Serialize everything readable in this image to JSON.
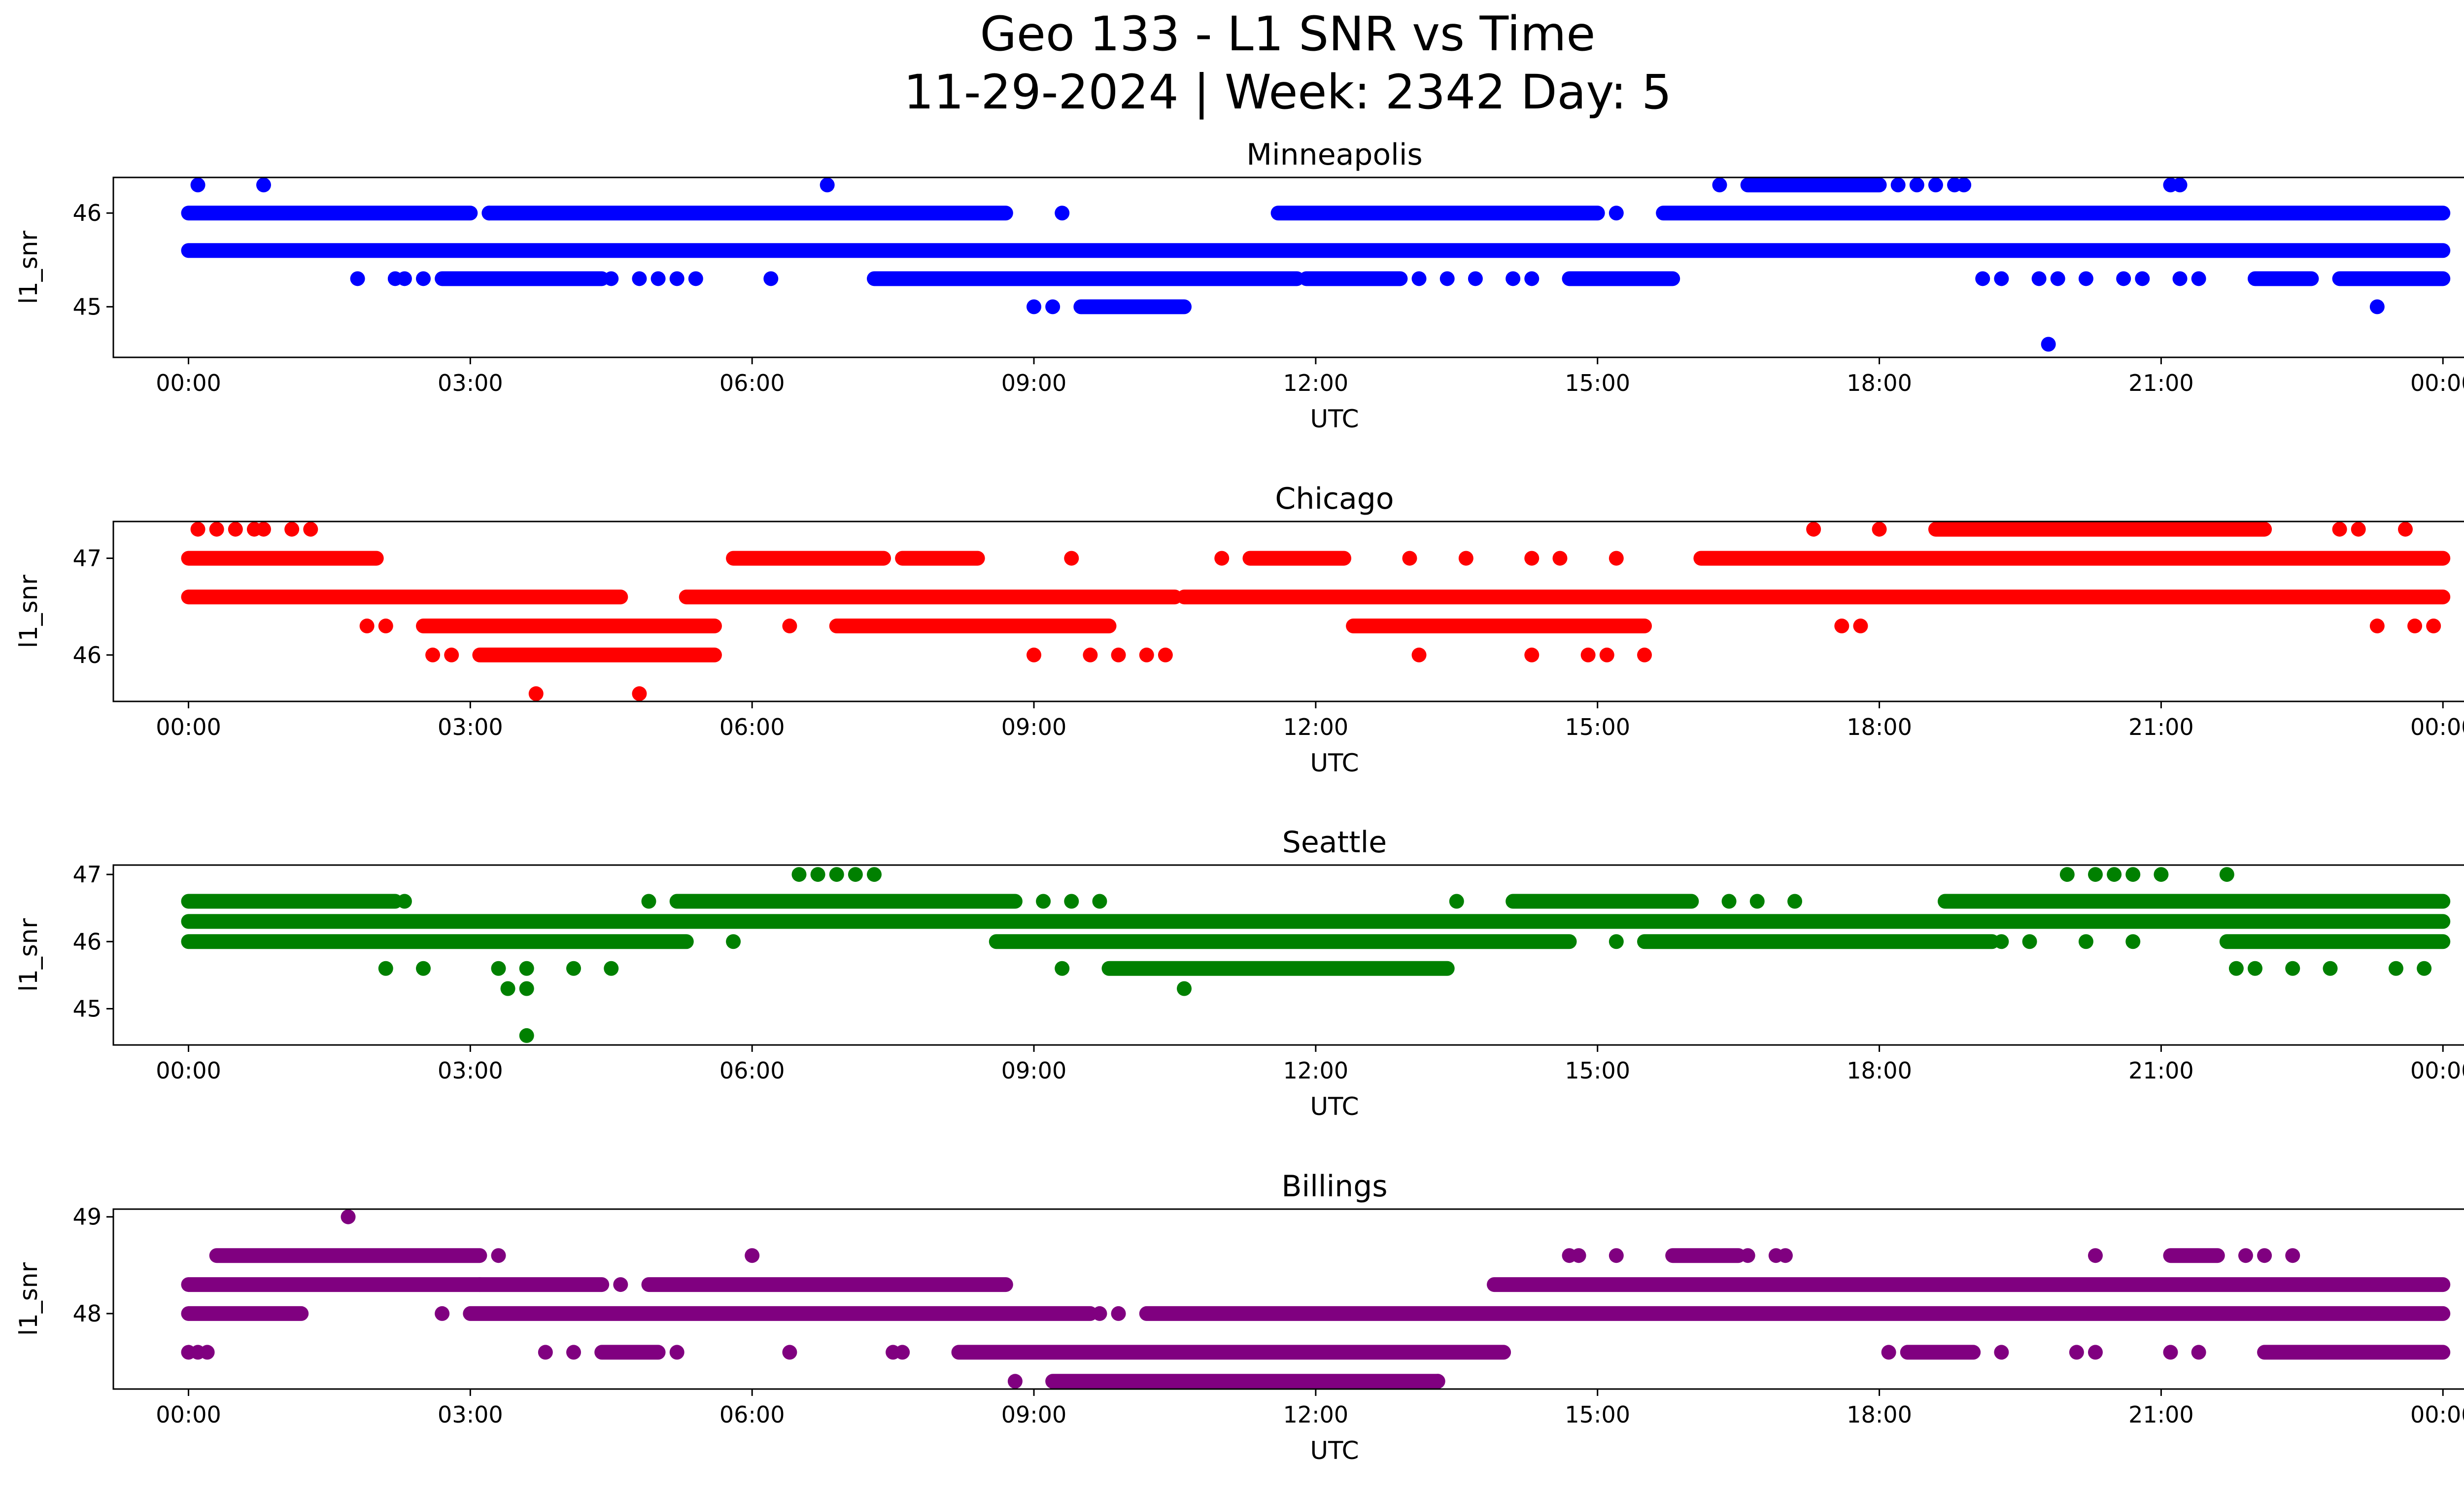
{
  "figure": {
    "title_line1": "Geo 133 - L1 SNR vs Time",
    "title_line2": "11-29-2024 | Week: 2342 Day: 5"
  },
  "chart_data": [
    {
      "type": "scatter",
      "title": "Minneapolis",
      "xlabel": "UTC",
      "ylabel": "l1_snr",
      "color": "#0000ff",
      "xlim": [
        -0.8,
        25.2
      ],
      "ylim": [
        44.46,
        46.38
      ],
      "xticks": [
        0,
        3,
        6,
        9,
        12,
        15,
        18,
        21,
        24
      ],
      "xtick_labels": [
        "00:00",
        "03:00",
        "06:00",
        "09:00",
        "12:00",
        "15:00",
        "18:00",
        "21:00",
        "00:00"
      ],
      "yticks": [
        45,
        46
      ],
      "ytick_labels": [
        "45",
        "46"
      ],
      "levels": [
        {
          "y": 45.6,
          "ranges": [
            [
              0,
              24
            ]
          ]
        },
        {
          "y": 46.0,
          "ranges": [
            [
              0,
              3.0
            ],
            [
              3.2,
              8.7
            ],
            [
              11.6,
              15.0
            ],
            [
              15.7,
              24
            ]
          ]
        },
        {
          "y": 45.3,
          "ranges": [
            [
              2.7,
              4.4
            ],
            [
              7.3,
              11.8
            ],
            [
              11.9,
              12.9
            ],
            [
              14.7,
              15.8
            ],
            [
              22.0,
              22.6
            ],
            [
              22.9,
              24
            ]
          ]
        },
        {
          "y": 45.0,
          "ranges": [
            [
              9.5,
              10.6
            ]
          ]
        },
        {
          "y": 46.3,
          "ranges": [
            [
              16.6,
              18.0
            ]
          ]
        }
      ],
      "points": [
        [
          0.1,
          46.3
        ],
        [
          0.8,
          46.3
        ],
        [
          6.8,
          46.3
        ],
        [
          16.3,
          46.3
        ],
        [
          18.2,
          46.3
        ],
        [
          18.4,
          46.3
        ],
        [
          18.6,
          46.3
        ],
        [
          18.8,
          46.3
        ],
        [
          18.9,
          46.3
        ],
        [
          21.1,
          46.3
        ],
        [
          21.2,
          46.3
        ],
        [
          3.2,
          46.0
        ],
        [
          9.3,
          46.0
        ],
        [
          15.2,
          46.0
        ],
        [
          9.0,
          45.0
        ],
        [
          9.2,
          45.0
        ],
        [
          23.3,
          45.0
        ],
        [
          19.8,
          44.6
        ],
        [
          1.8,
          45.3
        ],
        [
          2.2,
          45.3
        ],
        [
          2.3,
          45.3
        ],
        [
          2.5,
          45.3
        ],
        [
          4.5,
          45.3
        ],
        [
          4.8,
          45.3
        ],
        [
          5.0,
          45.3
        ],
        [
          5.2,
          45.3
        ],
        [
          5.4,
          45.3
        ],
        [
          6.2,
          45.3
        ],
        [
          13.1,
          45.3
        ],
        [
          13.4,
          45.3
        ],
        [
          13.7,
          45.3
        ],
        [
          14.1,
          45.3
        ],
        [
          14.3,
          45.3
        ],
        [
          19.1,
          45.3
        ],
        [
          19.3,
          45.3
        ],
        [
          19.7,
          45.3
        ],
        [
          19.9,
          45.3
        ],
        [
          20.2,
          45.3
        ],
        [
          20.6,
          45.3
        ],
        [
          20.8,
          45.3
        ],
        [
          21.2,
          45.3
        ],
        [
          21.4,
          45.3
        ]
      ]
    },
    {
      "type": "scatter",
      "title": "Chicago",
      "xlabel": "UTC",
      "ylabel": "l1_snr",
      "color": "#ff0000",
      "xlim": [
        -0.8,
        25.2
      ],
      "ylim": [
        45.52,
        47.38
      ],
      "xticks": [
        0,
        3,
        6,
        9,
        12,
        15,
        18,
        21,
        24
      ],
      "xtick_labels": [
        "00:00",
        "03:00",
        "06:00",
        "09:00",
        "12:00",
        "15:00",
        "18:00",
        "21:00",
        "00:00"
      ],
      "yticks": [
        46,
        47
      ],
      "ytick_labels": [
        "46",
        "47"
      ],
      "levels": [
        {
          "y": 46.6,
          "ranges": [
            [
              0,
              4.6
            ],
            [
              5.3,
              10.5
            ],
            [
              10.6,
              24
            ]
          ]
        },
        {
          "y": 47.0,
          "ranges": [
            [
              0,
              2.0
            ],
            [
              5.8,
              7.4
            ],
            [
              7.6,
              8.4
            ],
            [
              11.3,
              12.3
            ],
            [
              16.1,
              24
            ]
          ]
        },
        {
          "y": 46.3,
          "ranges": [
            [
              2.5,
              5.6
            ],
            [
              6.9,
              9.8
            ],
            [
              12.4,
              15.5
            ]
          ]
        },
        {
          "y": 46.0,
          "ranges": [
            [
              3.1,
              5.6
            ]
          ]
        },
        {
          "y": 47.3,
          "ranges": [
            [
              18.6,
              22.1
            ]
          ]
        }
      ],
      "points": [
        [
          0.1,
          47.3
        ],
        [
          0.3,
          47.3
        ],
        [
          0.5,
          47.3
        ],
        [
          0.7,
          47.3
        ],
        [
          0.8,
          47.3
        ],
        [
          1.1,
          47.3
        ],
        [
          1.3,
          47.3
        ],
        [
          17.3,
          47.3
        ],
        [
          18.0,
          47.3
        ],
        [
          22.9,
          47.3
        ],
        [
          23.1,
          47.3
        ],
        [
          23.6,
          47.3
        ],
        [
          2.6,
          46.0
        ],
        [
          2.8,
          46.0
        ],
        [
          9.0,
          46.0
        ],
        [
          9.6,
          46.0
        ],
        [
          9.9,
          46.0
        ],
        [
          10.2,
          46.0
        ],
        [
          10.4,
          46.0
        ],
        [
          13.1,
          46.0
        ],
        [
          14.3,
          46.0
        ],
        [
          14.9,
          46.0
        ],
        [
          15.1,
          46.0
        ],
        [
          15.5,
          46.0
        ],
        [
          3.7,
          45.6
        ],
        [
          4.8,
          45.6
        ],
        [
          1.9,
          46.3
        ],
        [
          2.1,
          46.3
        ],
        [
          6.4,
          46.3
        ],
        [
          17.6,
          46.3
        ],
        [
          17.8,
          46.3
        ],
        [
          23.3,
          46.3
        ],
        [
          23.7,
          46.3
        ],
        [
          23.9,
          46.3
        ],
        [
          9.4,
          47.0
        ],
        [
          11.0,
          47.0
        ],
        [
          13.0,
          47.0
        ],
        [
          13.6,
          47.0
        ],
        [
          14.3,
          47.0
        ],
        [
          14.6,
          47.0
        ],
        [
          15.2,
          47.0
        ]
      ]
    },
    {
      "type": "scatter",
      "title": "Seattle",
      "xlabel": "UTC",
      "ylabel": "l1_snr",
      "color": "#008000",
      "xlim": [
        -0.8,
        25.2
      ],
      "ylim": [
        44.46,
        47.14
      ],
      "xticks": [
        0,
        3,
        6,
        9,
        12,
        15,
        18,
        21,
        24
      ],
      "xtick_labels": [
        "00:00",
        "03:00",
        "06:00",
        "09:00",
        "12:00",
        "15:00",
        "18:00",
        "21:00",
        "00:00"
      ],
      "yticks": [
        45,
        46,
        47
      ],
      "ytick_labels": [
        "45",
        "46",
        "47"
      ],
      "levels": [
        {
          "y": 46.3,
          "ranges": [
            [
              0,
              24
            ]
          ]
        },
        {
          "y": 46.0,
          "ranges": [
            [
              0,
              5.3
            ],
            [
              8.6,
              14.7
            ],
            [
              15.5,
              19.2
            ],
            [
              21.7,
              24
            ]
          ]
        },
        {
          "y": 46.6,
          "ranges": [
            [
              0,
              2.2
            ],
            [
              5.2,
              8.8
            ],
            [
              14.1,
              16.0
            ],
            [
              18.7,
              24
            ]
          ]
        },
        {
          "y": 45.6,
          "ranges": [
            [
              9.8,
              13.4
            ]
          ]
        }
      ],
      "points": [
        [
          6.5,
          47.0
        ],
        [
          6.7,
          47.0
        ],
        [
          6.9,
          47.0
        ],
        [
          7.1,
          47.0
        ],
        [
          7.3,
          47.0
        ],
        [
          20.0,
          47.0
        ],
        [
          20.3,
          47.0
        ],
        [
          20.5,
          47.0
        ],
        [
          20.7,
          47.0
        ],
        [
          21.0,
          47.0
        ],
        [
          21.7,
          47.0
        ],
        [
          2.3,
          46.6
        ],
        [
          4.9,
          46.6
        ],
        [
          9.1,
          46.6
        ],
        [
          9.4,
          46.6
        ],
        [
          9.7,
          46.6
        ],
        [
          13.5,
          46.6
        ],
        [
          16.4,
          46.6
        ],
        [
          16.7,
          46.6
        ],
        [
          17.1,
          46.6
        ],
        [
          2.1,
          45.6
        ],
        [
          2.5,
          45.6
        ],
        [
          3.3,
          45.6
        ],
        [
          3.6,
          45.6
        ],
        [
          4.1,
          45.6
        ],
        [
          4.5,
          45.6
        ],
        [
          9.3,
          45.6
        ],
        [
          21.8,
          45.6
        ],
        [
          22.0,
          45.6
        ],
        [
          22.4,
          45.6
        ],
        [
          22.8,
          45.6
        ],
        [
          23.5,
          45.6
        ],
        [
          23.8,
          45.6
        ],
        [
          3.4,
          45.3
        ],
        [
          3.6,
          45.3
        ],
        [
          10.6,
          45.3
        ],
        [
          3.6,
          44.6
        ],
        [
          5.8,
          46.0
        ],
        [
          15.2,
          46.0
        ],
        [
          19.3,
          46.0
        ],
        [
          19.6,
          46.0
        ],
        [
          20.2,
          46.0
        ],
        [
          20.7,
          46.0
        ]
      ]
    },
    {
      "type": "scatter",
      "title": "Billings",
      "xlabel": "UTC",
      "ylabel": "l1_snr",
      "color": "#800080",
      "xlim": [
        -0.8,
        25.2
      ],
      "ylim": [
        47.22,
        49.08
      ],
      "xticks": [
        0,
        3,
        6,
        9,
        12,
        15,
        18,
        21,
        24
      ],
      "xtick_labels": [
        "00:00",
        "03:00",
        "06:00",
        "09:00",
        "12:00",
        "15:00",
        "18:00",
        "21:00",
        "00:00"
      ],
      "yticks": [
        48,
        49
      ],
      "ytick_labels": [
        "48",
        "49"
      ],
      "levels": [
        {
          "y": 48.3,
          "ranges": [
            [
              0,
              4.4
            ],
            [
              4.9,
              8.7
            ],
            [
              13.9,
              24
            ]
          ]
        },
        {
          "y": 48.0,
          "ranges": [
            [
              0,
              1.2
            ],
            [
              3.0,
              9.6
            ],
            [
              10.2,
              24
            ]
          ]
        },
        {
          "y": 48.6,
          "ranges": [
            [
              0.3,
              3.1
            ],
            [
              15.8,
              16.5
            ],
            [
              21.1,
              21.6
            ]
          ]
        },
        {
          "y": 47.6,
          "ranges": [
            [
              4.4,
              5.0
            ],
            [
              8.2,
              14.0
            ],
            [
              18.3,
              19.0
            ],
            [
              22.1,
              24
            ]
          ]
        },
        {
          "y": 47.3,
          "ranges": [
            [
              9.2,
              13.3
            ]
          ]
        }
      ],
      "points": [
        [
          1.7,
          49.0
        ],
        [
          6.0,
          48.6
        ],
        [
          14.7,
          48.6
        ],
        [
          14.8,
          48.6
        ],
        [
          15.2,
          48.6
        ],
        [
          16.6,
          48.6
        ],
        [
          16.9,
          48.6
        ],
        [
          17.0,
          48.6
        ],
        [
          20.3,
          48.6
        ],
        [
          21.9,
          48.6
        ],
        [
          22.1,
          48.6
        ],
        [
          22.4,
          48.6
        ],
        [
          3.3,
          48.6
        ],
        [
          0.0,
          47.6
        ],
        [
          0.1,
          47.6
        ],
        [
          0.2,
          47.6
        ],
        [
          3.8,
          47.6
        ],
        [
          4.1,
          47.6
        ],
        [
          5.2,
          47.6
        ],
        [
          6.4,
          47.6
        ],
        [
          7.5,
          47.6
        ],
        [
          7.6,
          47.6
        ],
        [
          18.1,
          47.6
        ],
        [
          19.3,
          47.6
        ],
        [
          20.1,
          47.6
        ],
        [
          20.3,
          47.6
        ],
        [
          21.1,
          47.6
        ],
        [
          21.4,
          47.6
        ],
        [
          8.8,
          47.3
        ],
        [
          13.3,
          47.3
        ],
        [
          2.7,
          48.0
        ],
        [
          9.7,
          48.0
        ],
        [
          9.9,
          48.0
        ],
        [
          4.6,
          48.3
        ],
        [
          3.1,
          48.3
        ]
      ]
    }
  ]
}
